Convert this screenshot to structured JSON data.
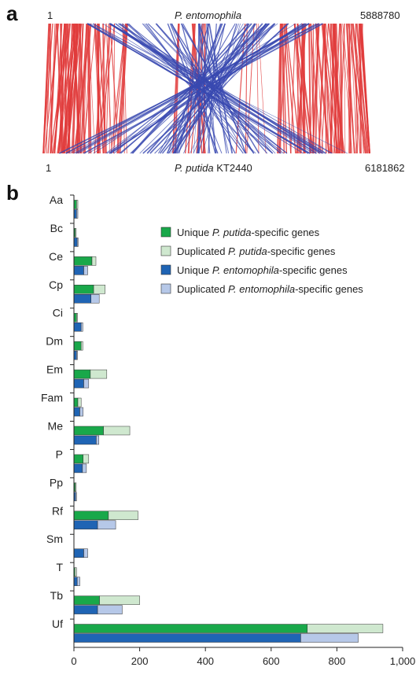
{
  "panel_a": {
    "letter": "a",
    "top_start": "1",
    "top_genome": "P. entomophila",
    "top_end": "5888780",
    "bottom_start": "1",
    "bottom_genome_italic": "P. putida",
    "bottom_genome_strain": " KT2440",
    "bottom_end": "6181862",
    "colors": {
      "syntenic": "#e03a3a",
      "inverted": "#3848b0"
    }
  },
  "panel_b": {
    "letter": "b"
  },
  "chart_data": {
    "type": "bar",
    "orientation": "horizontal",
    "stacked_pairs": true,
    "categories": [
      "Aa",
      "Bc",
      "Ce",
      "Cp",
      "Ci",
      "Dm",
      "Em",
      "Fam",
      "Me",
      "P",
      "Pp",
      "Rf",
      "Sm",
      "T",
      "Tb",
      "Uf"
    ],
    "series": [
      {
        "name_prefix": "Unique ",
        "name_italic": "P. putida",
        "name_suffix": "-specific genes",
        "color": "#19a84a",
        "values": [
          8,
          4,
          55,
          60,
          8,
          22,
          50,
          12,
          90,
          28,
          4,
          105,
          0,
          3,
          78,
          710
        ]
      },
      {
        "name_prefix": "Duplicated ",
        "name_italic": "P. putida",
        "name_suffix": "-specific genes",
        "color": "#cfe8cf",
        "values": [
          4,
          3,
          12,
          35,
          3,
          5,
          50,
          10,
          80,
          17,
          3,
          90,
          0,
          5,
          122,
          230
        ]
      },
      {
        "name_prefix": "Unique ",
        "name_italic": "P. entomophila",
        "name_suffix": "-specific genes",
        "color": "#1f64b4",
        "values": [
          8,
          10,
          30,
          52,
          22,
          8,
          30,
          18,
          68,
          26,
          5,
          72,
          30,
          10,
          72,
          690
        ]
      },
      {
        "name_prefix": "Duplicated ",
        "name_italic": "P. entomophila",
        "name_suffix": "-specific genes",
        "color": "#b6c8e8",
        "values": [
          4,
          3,
          12,
          25,
          5,
          3,
          15,
          10,
          8,
          12,
          3,
          55,
          12,
          8,
          75,
          175
        ]
      }
    ],
    "xlim": [
      0,
      1000
    ],
    "xticks": [
      "0",
      "200",
      "400",
      "600",
      "800",
      "1,000"
    ],
    "xtick_values": [
      0,
      200,
      400,
      600,
      800,
      1000
    ],
    "legend_position": "top-right",
    "grid": false
  }
}
